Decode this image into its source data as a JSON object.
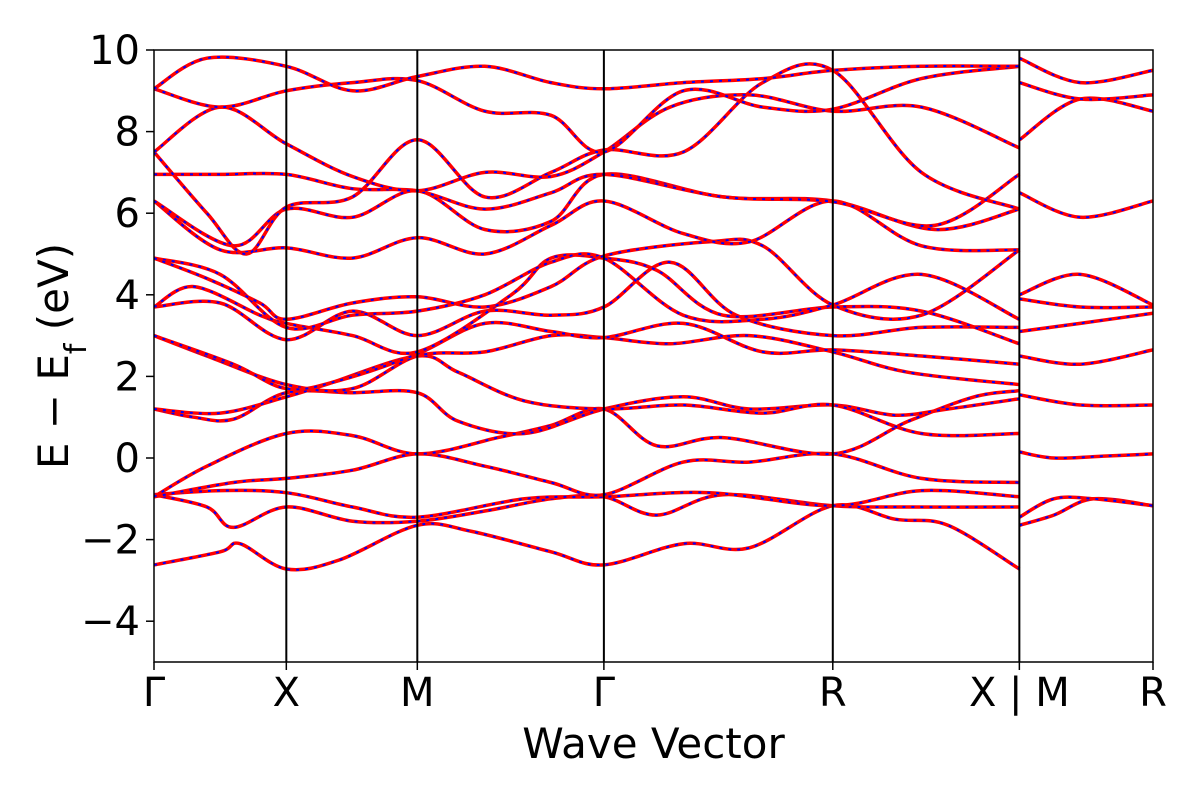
{
  "chart_data": {
    "type": "line",
    "xlabel": "Wave Vector",
    "ylabel_parts": [
      "E − E",
      "f",
      " (eV)"
    ],
    "ylim": [
      -5,
      10
    ],
    "yticks": [
      -4,
      -2,
      0,
      2,
      4,
      6,
      8,
      10
    ],
    "x_range": [
      0,
      7.55
    ],
    "kpoints": [
      {
        "label": "Γ",
        "x": 0
      },
      {
        "label": "X",
        "x": 1.0
      },
      {
        "label": "M",
        "x": 1.99
      },
      {
        "label": "Γ",
        "x": 3.4
      },
      {
        "label": "R",
        "x": 5.13
      },
      {
        "label": "X | M",
        "x": 6.54
      },
      {
        "label": "R",
        "x": 7.55
      }
    ],
    "grid": false,
    "legend": "none",
    "series_styles": [
      {
        "color": "#ff0000",
        "style": "solid"
      },
      {
        "color": "#0000ff",
        "style": "dotted"
      }
    ],
    "bands": [
      [
        [
          0,
          -2.62
        ],
        [
          0.5,
          -2.3
        ],
        [
          0.65,
          -2.1
        ],
        [
          1.0,
          -2.72
        ],
        [
          1.4,
          -2.5
        ],
        [
          1.99,
          -1.65
        ],
        [
          2.4,
          -1.8
        ],
        [
          3.0,
          -2.3
        ],
        [
          3.4,
          -2.62
        ],
        [
          4.0,
          -2.1
        ],
        [
          4.5,
          -2.2
        ],
        [
          5.13,
          -1.17
        ],
        [
          5.6,
          -1.5
        ],
        [
          6.0,
          -1.65
        ],
        [
          6.54,
          -2.72
        ]
      ],
      [
        [
          6.54,
          -1.65
        ],
        [
          6.8,
          -1.4
        ],
        [
          7.1,
          -1.0
        ],
        [
          7.55,
          -1.17
        ]
      ],
      [
        [
          0,
          -0.9
        ],
        [
          0.4,
          -1.2
        ],
        [
          0.6,
          -1.7
        ],
        [
          1.0,
          -1.2
        ],
        [
          1.5,
          -1.55
        ],
        [
          1.99,
          -1.55
        ],
        [
          2.5,
          -1.3
        ],
        [
          3.0,
          -1.0
        ],
        [
          3.4,
          -0.95
        ],
        [
          3.8,
          -1.4
        ],
        [
          4.3,
          -0.9
        ],
        [
          5.13,
          -1.17
        ],
        [
          5.7,
          -1.2
        ],
        [
          6.54,
          -1.2
        ]
      ],
      [
        [
          6.54,
          -1.45
        ],
        [
          6.8,
          -1.0
        ],
        [
          7.1,
          -1.0
        ],
        [
          7.55,
          -1.17
        ]
      ],
      [
        [
          0,
          -0.9
        ],
        [
          0.5,
          -0.8
        ],
        [
          1.0,
          -0.85
        ],
        [
          1.5,
          -1.2
        ],
        [
          1.99,
          -1.45
        ],
        [
          2.8,
          -1.0
        ],
        [
          3.4,
          -0.95
        ],
        [
          4.2,
          -0.85
        ],
        [
          5.13,
          -1.17
        ],
        [
          5.8,
          -0.8
        ],
        [
          6.54,
          -0.95
        ]
      ],
      [
        [
          0,
          -0.95
        ],
        [
          0.6,
          -0.6
        ],
        [
          1.0,
          -0.5
        ],
        [
          1.5,
          -0.3
        ],
        [
          1.99,
          0.1
        ],
        [
          2.5,
          -0.2
        ],
        [
          3.0,
          -0.6
        ],
        [
          3.4,
          -0.9
        ],
        [
          4.0,
          -0.1
        ],
        [
          4.5,
          -0.1
        ],
        [
          5.13,
          0.1
        ],
        [
          5.8,
          -0.5
        ],
        [
          6.54,
          -0.6
        ]
      ],
      [
        [
          6.54,
          0.15
        ],
        [
          6.8,
          0.0
        ],
        [
          7.2,
          0.05
        ],
        [
          7.55,
          0.1
        ]
      ],
      [
        [
          0,
          -0.95
        ],
        [
          0.4,
          -0.2
        ],
        [
          1.0,
          0.6
        ],
        [
          1.5,
          0.55
        ],
        [
          1.99,
          0.1
        ],
        [
          2.6,
          0.5
        ],
        [
          3.0,
          0.8
        ],
        [
          3.4,
          1.2
        ],
        [
          3.8,
          0.3
        ],
        [
          4.3,
          0.5
        ],
        [
          5.13,
          0.1
        ],
        [
          5.7,
          0.9
        ],
        [
          6.2,
          1.5
        ],
        [
          6.54,
          1.65
        ]
      ],
      [
        [
          0,
          1.2
        ],
        [
          0.3,
          1.0
        ],
        [
          0.6,
          0.95
        ],
        [
          1.0,
          1.6
        ],
        [
          1.5,
          1.6
        ],
        [
          1.99,
          1.6
        ],
        [
          2.3,
          0.9
        ],
        [
          2.8,
          0.6
        ],
        [
          3.4,
          1.2
        ],
        [
          4.0,
          1.5
        ],
        [
          4.5,
          1.2
        ],
        [
          5.13,
          1.3
        ],
        [
          5.6,
          1.05
        ],
        [
          6.0,
          1.2
        ],
        [
          6.54,
          1.45
        ]
      ],
      [
        [
          6.54,
          1.55
        ],
        [
          7.0,
          1.3
        ],
        [
          7.55,
          1.3
        ]
      ],
      [
        [
          0,
          1.2
        ],
        [
          0.5,
          1.1
        ],
        [
          1.0,
          1.5
        ],
        [
          1.3,
          1.8
        ],
        [
          1.99,
          2.5
        ],
        [
          2.3,
          2.1
        ],
        [
          2.8,
          1.4
        ],
        [
          3.4,
          1.2
        ],
        [
          4.0,
          1.3
        ],
        [
          4.6,
          1.1
        ],
        [
          5.13,
          1.3
        ],
        [
          5.8,
          0.6
        ],
        [
          6.54,
          0.6
        ]
      ],
      [
        [
          0,
          3.0
        ],
        [
          0.4,
          2.5
        ],
        [
          1.0,
          1.8
        ],
        [
          1.5,
          1.7
        ],
        [
          1.99,
          2.5
        ],
        [
          2.5,
          2.6
        ],
        [
          3.0,
          3.0
        ],
        [
          3.4,
          2.95
        ],
        [
          3.9,
          2.8
        ],
        [
          4.5,
          3.0
        ],
        [
          5.13,
          2.6
        ],
        [
          5.7,
          2.1
        ],
        [
          6.54,
          1.8
        ]
      ],
      [
        [
          6.54,
          2.5
        ],
        [
          7.0,
          2.3
        ],
        [
          7.55,
          2.65
        ]
      ],
      [
        [
          0,
          3.0
        ],
        [
          0.6,
          2.3
        ],
        [
          1.0,
          1.7
        ],
        [
          1.4,
          1.9
        ],
        [
          1.99,
          2.55
        ],
        [
          2.5,
          3.3
        ],
        [
          3.0,
          3.1
        ],
        [
          3.4,
          2.95
        ],
        [
          4.0,
          3.3
        ],
        [
          4.6,
          2.6
        ],
        [
          5.13,
          2.65
        ],
        [
          5.8,
          2.5
        ],
        [
          6.54,
          2.3
        ]
      ],
      [
        [
          0,
          3.7
        ],
        [
          0.5,
          3.8
        ],
        [
          1.0,
          2.9
        ],
        [
          1.5,
          3.6
        ],
        [
          1.99,
          3.0
        ],
        [
          2.5,
          3.6
        ],
        [
          3.0,
          3.5
        ],
        [
          3.4,
          3.7
        ],
        [
          3.9,
          4.8
        ],
        [
          4.4,
          3.5
        ],
        [
          5.13,
          3.0
        ],
        [
          5.8,
          3.2
        ],
        [
          6.54,
          3.2
        ]
      ],
      [
        [
          6.54,
          3.1
        ],
        [
          7.0,
          3.3
        ],
        [
          7.55,
          3.55
        ]
      ],
      [
        [
          0,
          3.7
        ],
        [
          0.3,
          4.2
        ],
        [
          0.8,
          3.5
        ],
        [
          1.0,
          3.3
        ],
        [
          1.5,
          3.0
        ],
        [
          1.99,
          2.6
        ],
        [
          2.7,
          4.0
        ],
        [
          3.0,
          4.9
        ],
        [
          3.4,
          4.9
        ],
        [
          3.8,
          4.6
        ],
        [
          4.3,
          3.5
        ],
        [
          5.13,
          3.7
        ],
        [
          5.8,
          3.6
        ],
        [
          6.54,
          2.8
        ]
      ],
      [
        [
          6.54,
          3.9
        ],
        [
          7.0,
          3.7
        ],
        [
          7.55,
          3.7
        ]
      ],
      [
        [
          0,
          4.9
        ],
        [
          0.5,
          4.5
        ],
        [
          1.0,
          3.2
        ],
        [
          1.5,
          3.5
        ],
        [
          1.99,
          3.6
        ],
        [
          2.5,
          4.0
        ],
        [
          3.0,
          4.8
        ],
        [
          3.4,
          4.9
        ],
        [
          4.0,
          3.5
        ],
        [
          4.6,
          3.4
        ],
        [
          5.13,
          3.75
        ],
        [
          5.8,
          4.5
        ],
        [
          6.54,
          3.4
        ]
      ],
      [
        [
          0,
          4.9
        ],
        [
          0.4,
          4.4
        ],
        [
          0.8,
          3.8
        ],
        [
          1.0,
          3.4
        ],
        [
          1.5,
          3.8
        ],
        [
          1.99,
          3.95
        ],
        [
          2.5,
          3.7
        ],
        [
          3.0,
          4.2
        ],
        [
          3.4,
          4.95
        ],
        [
          4.2,
          5.3
        ],
        [
          4.6,
          5.2
        ],
        [
          5.13,
          3.75
        ],
        [
          5.8,
          3.5
        ],
        [
          6.54,
          5.1
        ]
      ],
      [
        [
          6.54,
          4.0
        ],
        [
          7.0,
          4.5
        ],
        [
          7.55,
          3.75
        ]
      ],
      [
        [
          0,
          6.3
        ],
        [
          0.5,
          5.1
        ],
        [
          1.0,
          5.15
        ],
        [
          1.5,
          4.9
        ],
        [
          1.99,
          5.4
        ],
        [
          2.5,
          5.0
        ],
        [
          3.0,
          5.7
        ],
        [
          3.4,
          6.3
        ],
        [
          4.0,
          5.5
        ],
        [
          4.5,
          5.3
        ],
        [
          5.13,
          6.3
        ],
        [
          5.8,
          5.2
        ],
        [
          6.54,
          5.1
        ]
      ],
      [
        [
          6.54,
          6.5
        ],
        [
          7.0,
          5.9
        ],
        [
          7.55,
          6.3
        ]
      ],
      [
        [
          0,
          6.3
        ],
        [
          0.6,
          5.2
        ],
        [
          1.0,
          6.1
        ],
        [
          1.5,
          5.9
        ],
        [
          1.99,
          6.55
        ],
        [
          2.5,
          5.6
        ],
        [
          3.0,
          5.8
        ],
        [
          3.4,
          6.95
        ],
        [
          4.3,
          6.4
        ],
        [
          5.13,
          6.3
        ],
        [
          5.9,
          5.6
        ],
        [
          6.54,
          6.1
        ]
      ],
      [
        [
          0,
          6.95
        ],
        [
          0.5,
          6.95
        ],
        [
          1.0,
          6.95
        ],
        [
          1.5,
          6.6
        ],
        [
          1.99,
          6.55
        ],
        [
          2.5,
          6.1
        ],
        [
          3.0,
          6.5
        ],
        [
          3.4,
          6.95
        ],
        [
          4.3,
          6.4
        ],
        [
          5.13,
          6.28
        ],
        [
          5.9,
          5.7
        ],
        [
          6.54,
          6.95
        ]
      ],
      [
        [
          0,
          7.5
        ],
        [
          0.4,
          6.0
        ],
        [
          0.7,
          5.0
        ],
        [
          1.0,
          6.15
        ],
        [
          1.5,
          6.4
        ],
        [
          1.99,
          7.8
        ],
        [
          2.5,
          6.4
        ],
        [
          3.0,
          7.0
        ],
        [
          3.4,
          7.55
        ],
        [
          4.0,
          7.5
        ],
        [
          4.6,
          9.2
        ],
        [
          5.13,
          9.5
        ],
        [
          5.8,
          7.0
        ],
        [
          6.54,
          6.1
        ]
      ],
      [
        [
          6.54,
          7.8
        ],
        [
          7.0,
          8.8
        ],
        [
          7.55,
          8.5
        ]
      ],
      [
        [
          0,
          7.5
        ],
        [
          0.5,
          8.6
        ],
        [
          1.0,
          7.7
        ],
        [
          1.5,
          6.9
        ],
        [
          1.99,
          6.55
        ],
        [
          2.5,
          7.0
        ],
        [
          3.0,
          6.9
        ],
        [
          3.4,
          7.5
        ],
        [
          3.9,
          8.6
        ],
        [
          4.5,
          8.9
        ],
        [
          5.13,
          8.5
        ],
        [
          5.8,
          8.6
        ],
        [
          6.54,
          7.6
        ]
      ],
      [
        [
          0,
          9.05
        ],
        [
          0.5,
          8.6
        ],
        [
          1.0,
          9.0
        ],
        [
          1.5,
          9.2
        ],
        [
          1.99,
          9.25
        ],
        [
          2.5,
          8.5
        ],
        [
          3.0,
          8.4
        ],
        [
          3.4,
          7.5
        ],
        [
          4.0,
          9.0
        ],
        [
          4.6,
          8.6
        ],
        [
          5.13,
          8.55
        ],
        [
          5.8,
          9.3
        ],
        [
          6.54,
          9.6
        ]
      ],
      [
        [
          6.54,
          9.2
        ],
        [
          7.0,
          8.8
        ],
        [
          7.55,
          8.9
        ]
      ],
      [
        [
          0,
          9.05
        ],
        [
          0.4,
          9.8
        ],
        [
          1.0,
          9.6
        ],
        [
          1.5,
          9.0
        ],
        [
          1.99,
          9.35
        ],
        [
          2.5,
          9.6
        ],
        [
          3.0,
          9.2
        ],
        [
          3.4,
          9.05
        ],
        [
          4.0,
          9.2
        ],
        [
          4.6,
          9.3
        ],
        [
          5.13,
          9.5
        ],
        [
          5.8,
          9.6
        ],
        [
          6.54,
          9.6
        ]
      ],
      [
        [
          6.54,
          9.8
        ],
        [
          7.0,
          9.2
        ],
        [
          7.55,
          9.5
        ]
      ]
    ]
  }
}
